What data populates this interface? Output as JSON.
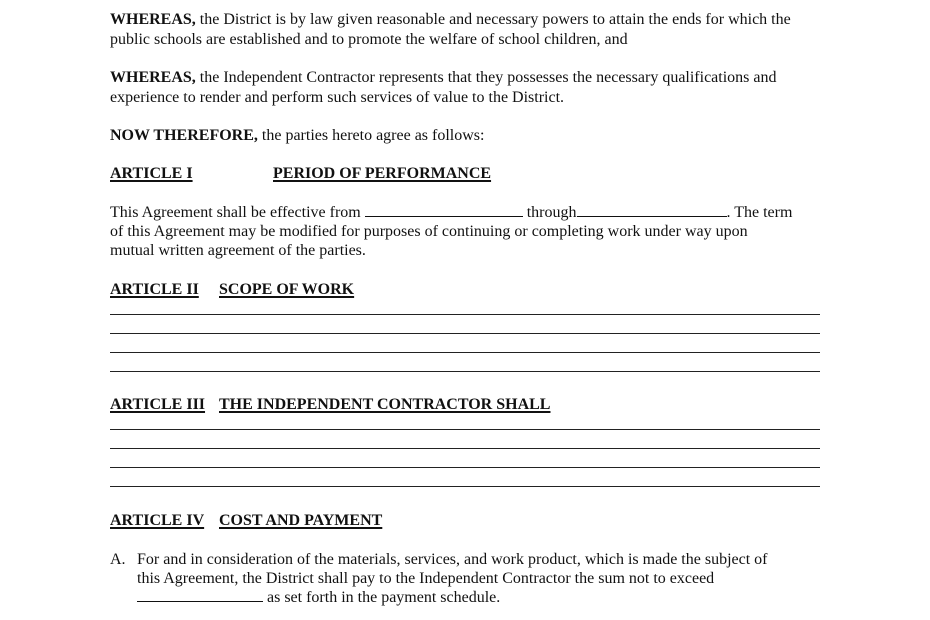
{
  "whereas1": {
    "lead": "WHEREAS,",
    "line1": " the District is by law given reasonable and necessary powers to attain the ends for which the",
    "line2": "public schools are established and to promote the welfare of school children, and"
  },
  "whereas2": {
    "lead": "WHEREAS,",
    "line1": " the Independent Contractor represents that they possesses the necessary qualifications and",
    "line2": "experience to render and perform such services of value to the District."
  },
  "now_therefore": {
    "lead": "NOW THEREFORE,",
    "text": " the parties hereto agree as follows:"
  },
  "article1": {
    "number": "ARTICLE I",
    "title": "PERIOD OF PERFORMANCE",
    "line1_a": "This Agreement shall be effective from ",
    "line1_b": " through",
    "line1_c": ".  The term",
    "line2": "of this Agreement may be modified for purposes of continuing or completing work under way upon",
    "line3": "mutual written agreement of the parties."
  },
  "article2": {
    "number": "ARTICLE II",
    "title": "SCOPE OF WORK"
  },
  "article3": {
    "number": "ARTICLE III",
    "title": "THE INDEPENDENT CONTRACTOR SHALL"
  },
  "article4": {
    "number": "ARTICLE IV",
    "title": "COST AND PAYMENT",
    "item_a": {
      "marker": "A.",
      "line1": "For and in consideration of the materials, services, and work product, which is made the subject of",
      "line2": "this Agreement, the District shall pay to the Independent Contractor the sum not to exceed",
      "line3": " as set forth in the payment schedule."
    }
  }
}
